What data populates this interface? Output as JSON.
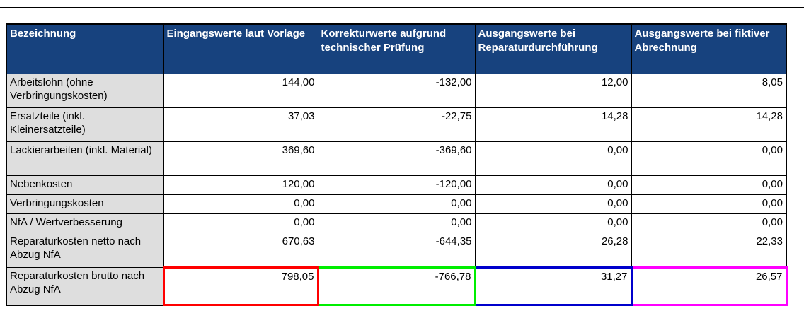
{
  "colors": {
    "header_bg": "#17427e",
    "header_text": "#ffffff",
    "label_bg": "#dedede",
    "grid": "#000000"
  },
  "table": {
    "columns": [
      "Bezeichnung",
      "Eingangswerte laut Vorlage",
      "Korrekturwerte aufgrund technischer Prüfung",
      "Ausgangswerte bei Reparaturdurchführung",
      "Ausgangswerte bei fiktiver Abrechnung"
    ],
    "rows": [
      {
        "label": "Arbeitslohn (ohne Verbringungskosten)",
        "values": [
          "144,00",
          "-132,00",
          "12,00",
          "8,05"
        ]
      },
      {
        "label": "Ersatzteile (inkl. Kleinersatzteile)",
        "values": [
          "37,03",
          "-22,75",
          "14,28",
          "14,28"
        ]
      },
      {
        "label": "Lackierarbeiten (inkl. Material)",
        "values": [
          "369,60",
          "-369,60",
          "0,00",
          "0,00"
        ]
      },
      {
        "label": "Nebenkosten",
        "values": [
          "120,00",
          "-120,00",
          "0,00",
          "0,00"
        ]
      },
      {
        "label": "Verbringungskosten",
        "values": [
          "0,00",
          "0,00",
          "0,00",
          "0,00"
        ]
      },
      {
        "label": "NfA / Wertverbesserung",
        "values": [
          "0,00",
          "0,00",
          "0,00",
          "0,00"
        ]
      },
      {
        "label": "Reparaturkosten netto nach Abzug NfA",
        "values": [
          "670,63",
          "-644,35",
          "26,28",
          "22,33"
        ]
      },
      {
        "label": "Reparaturkosten brutto nach Abzug NfA",
        "values": [
          "798,05",
          "-766,78",
          "31,27",
          "26,57"
        ]
      }
    ],
    "highlight_colors": [
      "#ff0000",
      "#00ee00",
      "#0000cc",
      "#ff00ff"
    ]
  }
}
